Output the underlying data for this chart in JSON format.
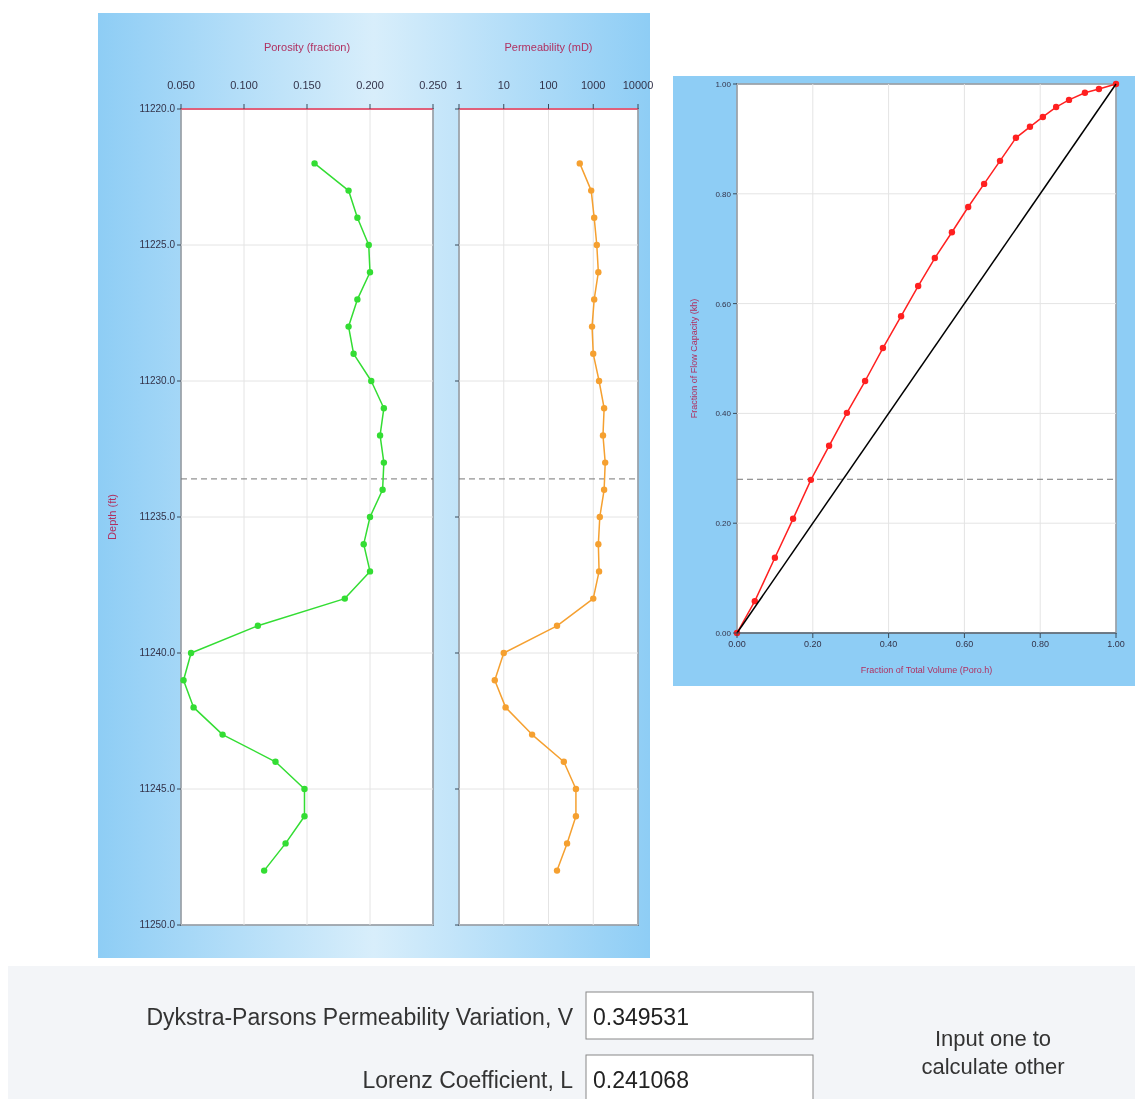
{
  "chart_data": [
    {
      "type": "line",
      "xlabel": "Porosity (fraction)",
      "ylabel": "Depth (ft)",
      "xlim": [
        0.05,
        0.25
      ],
      "xticks": [
        {
          "value": 0.05,
          "label": "0.050"
        },
        {
          "value": 0.1,
          "label": "0.100"
        },
        {
          "value": 0.15,
          "label": "0.150"
        },
        {
          "value": 0.2,
          "label": "0.200"
        },
        {
          "value": 0.25,
          "label": "0.250"
        }
      ],
      "ylim": [
        11250,
        11220
      ],
      "yticks": [
        {
          "value": 11220,
          "label": "11220.0"
        },
        {
          "value": 11225,
          "label": "11225.0"
        },
        {
          "value": 11230,
          "label": "11230.0"
        },
        {
          "value": 11235,
          "label": "11235.0"
        },
        {
          "value": 11240,
          "label": "11240.0"
        },
        {
          "value": 11245,
          "label": "11245.0"
        },
        {
          "value": 11250,
          "label": "11250.0"
        }
      ],
      "grid": true,
      "marker": "circle",
      "ref_lines": [
        {
          "axis": "y",
          "value": 11233.6,
          "color": "#777777",
          "line_style": "dashed"
        }
      ],
      "series": [
        {
          "color": "#33dd33",
          "x": [
            0.156,
            0.183,
            0.19,
            0.199,
            0.2,
            0.19,
            0.183,
            0.187,
            0.201,
            0.211,
            0.208,
            0.211,
            0.21,
            0.2,
            0.195,
            0.2,
            0.18,
            0.111,
            0.058,
            0.052,
            0.06,
            0.083,
            0.125,
            0.148,
            0.148,
            0.133,
            0.116
          ],
          "values": [
            11222,
            11223,
            11224,
            11225,
            11226,
            11227,
            11228,
            11229,
            11230,
            11231,
            11232,
            11233,
            11234,
            11235,
            11236,
            11237,
            11238,
            11239,
            11240,
            11241,
            11242,
            11243,
            11244,
            11245,
            11246,
            11247,
            11248
          ]
        }
      ]
    },
    {
      "type": "line",
      "xlabel": "Permeability (mD)",
      "log": "x",
      "xlim": [
        1,
        10000
      ],
      "xticks": [
        1,
        10,
        100,
        1000,
        10000
      ],
      "ylim": [
        11250,
        11220
      ],
      "yticks": [
        11220,
        11225,
        11230,
        11235,
        11240,
        11245,
        11250
      ],
      "tick_labels": "x",
      "grid": true,
      "marker": "circle",
      "ref_lines": [
        {
          "axis": "y",
          "value": 11233.6,
          "color": "#777777",
          "line_style": "dashed"
        }
      ],
      "series": [
        {
          "color": "#f5a030",
          "x": [
            500,
            900,
            1050,
            1200,
            1300,
            1050,
            940,
            1000,
            1350,
            1750,
            1650,
            1850,
            1750,
            1400,
            1300,
            1350,
            1000,
            155,
            10,
            6.3,
            11,
            43,
            220,
            410,
            410,
            260,
            155
          ],
          "values": [
            11222,
            11223,
            11224,
            11225,
            11226,
            11227,
            11228,
            11229,
            11230,
            11231,
            11232,
            11233,
            11234,
            11235,
            11236,
            11237,
            11238,
            11239,
            11240,
            11241,
            11242,
            11243,
            11244,
            11245,
            11246,
            11247,
            11248
          ]
        }
      ]
    },
    {
      "type": "line",
      "xlabel": "Fraction of Total Volume (Poro.h)",
      "ylabel": "Fraction of Flow Capacity (kh)",
      "xlim": [
        0,
        1
      ],
      "xticks": [
        {
          "value": 0,
          "label": "0.00"
        },
        {
          "value": 0.2,
          "label": "0.20"
        },
        {
          "value": 0.4,
          "label": "0.40"
        },
        {
          "value": 0.6,
          "label": "0.60"
        },
        {
          "value": 0.8,
          "label": "0.80"
        },
        {
          "value": 1,
          "label": "1.00"
        }
      ],
      "ylim": [
        0,
        1
      ],
      "yticks": [
        {
          "value": 0,
          "label": "0.00"
        },
        {
          "value": 0.2,
          "label": "0.20"
        },
        {
          "value": 0.4,
          "label": "0.40"
        },
        {
          "value": 0.6,
          "label": "0.60"
        },
        {
          "value": 0.8,
          "label": "0.80"
        },
        {
          "value": 1,
          "label": "1.00"
        }
      ],
      "grid": true,
      "marker": "circle",
      "ref_lines": [
        {
          "axis": "y",
          "value": 0.28,
          "color": "#777777",
          "line_style": "dashed"
        }
      ],
      "series": [
        {
          "color": "#ff2020",
          "x": [
            0,
            0.047,
            0.1,
            0.148,
            0.195,
            0.243,
            0.29,
            0.338,
            0.385,
            0.433,
            0.478,
            0.522,
            0.567,
            0.61,
            0.652,
            0.694,
            0.736,
            0.773,
            0.807,
            0.842,
            0.876,
            0.918,
            0.955,
            1
          ],
          "values": [
            0,
            0.058,
            0.137,
            0.208,
            0.279,
            0.341,
            0.401,
            0.459,
            0.519,
            0.577,
            0.632,
            0.683,
            0.73,
            0.776,
            0.818,
            0.86,
            0.902,
            0.922,
            0.94,
            0.958,
            0.971,
            0.984,
            0.991,
            1
          ]
        },
        {
          "type": "line",
          "color": "#000000",
          "marker": "none",
          "x": [
            0,
            1
          ],
          "values": [
            0,
            1
          ]
        }
      ]
    },
    {
      "type": "other",
      "annotations": [
        "Dykstra-Parsons Permeability Variation, V",
        "0.349531",
        "Lorenz Coefficient, L",
        "0.241068",
        "Input one to calculate other"
      ]
    }
  ]
}
